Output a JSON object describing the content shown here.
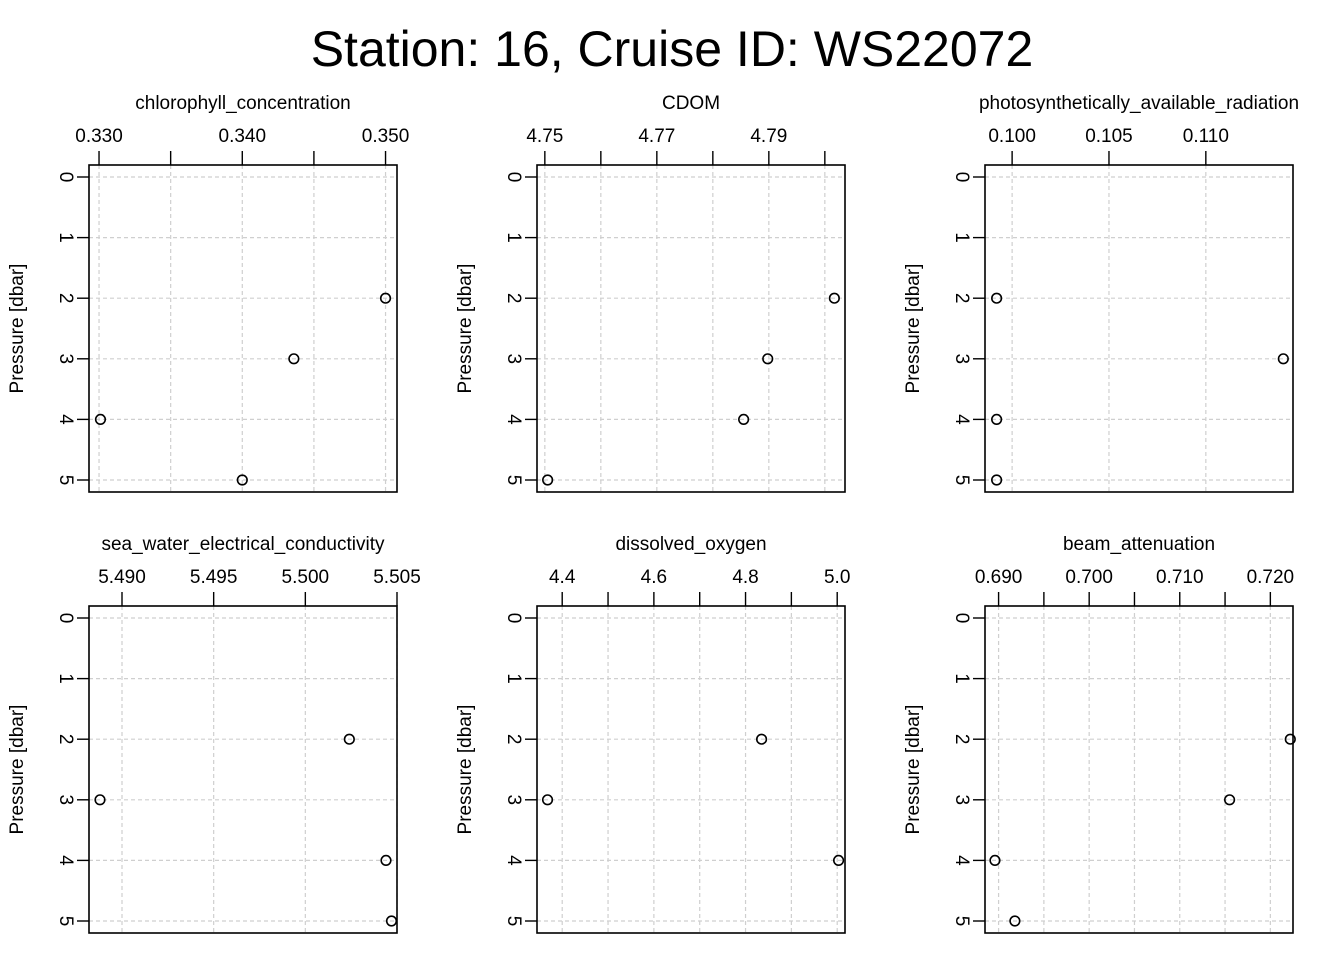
{
  "title": "Station: 16, Cruise ID: WS22072",
  "chart_data": [
    {
      "type": "scatter",
      "title": "chlorophyll_concentration",
      "xlabel": "",
      "ylabel": "Pressure [dbar]",
      "xlim": [
        0.3293,
        0.3508
      ],
      "ylim": [
        0,
        5.2
      ],
      "y_reversed": true,
      "grid": true,
      "xticks": [
        0.33,
        0.335,
        0.34,
        0.345,
        0.35
      ],
      "xtick_labels": [
        "0.330",
        "",
        "0.340",
        "",
        "0.350"
      ],
      "yticks": [
        0,
        1,
        2,
        3,
        4,
        5
      ],
      "ytick_labels": [
        "0",
        "1",
        "2",
        "3",
        "4",
        "5"
      ],
      "points": [
        {
          "x": 0.35,
          "y": 2
        },
        {
          "x": 0.3436,
          "y": 3
        },
        {
          "x": 0.3301,
          "y": 4
        },
        {
          "x": 0.34,
          "y": 5
        }
      ]
    },
    {
      "type": "scatter",
      "title": "CDOM",
      "xlabel": "",
      "ylabel": "Pressure [dbar]",
      "xlim": [
        4.7486,
        4.8036
      ],
      "ylim": [
        0,
        5.2
      ],
      "y_reversed": true,
      "grid": true,
      "xticks": [
        4.75,
        4.76,
        4.77,
        4.78,
        4.79,
        4.8
      ],
      "xtick_labels": [
        "4.75",
        "",
        "4.77",
        "",
        "4.79",
        ""
      ],
      "yticks": [
        0,
        1,
        2,
        3,
        4,
        5
      ],
      "ytick_labels": [
        "0",
        "1",
        "2",
        "3",
        "4",
        "5"
      ],
      "points": [
        {
          "x": 4.8017,
          "y": 2
        },
        {
          "x": 4.7898,
          "y": 3
        },
        {
          "x": 4.7855,
          "y": 4
        },
        {
          "x": 4.7505,
          "y": 5
        }
      ]
    },
    {
      "type": "scatter",
      "title": "photosynthetically_available_radiation",
      "xlabel": "",
      "ylabel": "Pressure [dbar]",
      "xlim": [
        0.0986,
        0.1145
      ],
      "ylim": [
        0,
        5.2
      ],
      "y_reversed": true,
      "grid": true,
      "xticks": [
        0.1,
        0.105,
        0.11
      ],
      "xtick_labels": [
        "0.100",
        "0.105",
        "0.110"
      ],
      "yticks": [
        0,
        1,
        2,
        3,
        4,
        5
      ],
      "ytick_labels": [
        "0",
        "1",
        "2",
        "3",
        "4",
        "5"
      ],
      "points": [
        {
          "x": 0.0992,
          "y": 2
        },
        {
          "x": 0.114,
          "y": 3
        },
        {
          "x": 0.0992,
          "y": 4
        },
        {
          "x": 0.0992,
          "y": 5
        }
      ]
    },
    {
      "type": "scatter",
      "title": "sea_water_electrical_conductivity",
      "xlabel": "",
      "ylabel": "Pressure [dbar]",
      "xlim": [
        5.4882,
        5.505
      ],
      "ylim": [
        0,
        5.2
      ],
      "y_reversed": true,
      "grid": true,
      "xticks": [
        5.49,
        5.495,
        5.5,
        5.505
      ],
      "xtick_labels": [
        "5.490",
        "5.495",
        "5.500",
        "5.505"
      ],
      "yticks": [
        0,
        1,
        2,
        3,
        4,
        5
      ],
      "ytick_labels": [
        "0",
        "1",
        "2",
        "3",
        "4",
        "5"
      ],
      "points": [
        {
          "x": 5.5024,
          "y": 2
        },
        {
          "x": 5.4888,
          "y": 3
        },
        {
          "x": 5.5044,
          "y": 4
        },
        {
          "x": 5.5047,
          "y": 5
        }
      ]
    },
    {
      "type": "scatter",
      "title": "dissolved_oxygen",
      "xlabel": "",
      "ylabel": "Pressure [dbar]",
      "xlim": [
        4.345,
        5.017
      ],
      "ylim": [
        0,
        5.2
      ],
      "y_reversed": true,
      "grid": true,
      "xticks": [
        4.4,
        4.5,
        4.6,
        4.7,
        4.8,
        4.9,
        5.0
      ],
      "xtick_labels": [
        "4.4",
        "",
        "4.6",
        "",
        "4.8",
        "",
        "5.0"
      ],
      "yticks": [
        0,
        1,
        2,
        3,
        4,
        5
      ],
      "ytick_labels": [
        "0",
        "1",
        "2",
        "3",
        "4",
        "5"
      ],
      "points": [
        {
          "x": 4.835,
          "y": 2
        },
        {
          "x": 4.368,
          "y": 3
        },
        {
          "x": 5.003,
          "y": 4
        }
      ]
    },
    {
      "type": "scatter",
      "title": "beam_attenuation",
      "xlabel": "",
      "ylabel": "Pressure [dbar]",
      "xlim": [
        0.6885,
        0.7225
      ],
      "ylim": [
        0,
        5.2
      ],
      "y_reversed": true,
      "grid": true,
      "xticks": [
        0.69,
        0.695,
        0.7,
        0.705,
        0.71,
        0.715,
        0.72
      ],
      "xtick_labels": [
        "0.690",
        "",
        "0.700",
        "",
        "0.710",
        "",
        "0.720"
      ],
      "yticks": [
        0,
        1,
        2,
        3,
        4,
        5
      ],
      "ytick_labels": [
        "0",
        "1",
        "2",
        "3",
        "4",
        "5"
      ],
      "points": [
        {
          "x": 0.7222,
          "y": 2
        },
        {
          "x": 0.7155,
          "y": 3
        },
        {
          "x": 0.6896,
          "y": 4
        },
        {
          "x": 0.6918,
          "y": 5
        }
      ]
    }
  ]
}
